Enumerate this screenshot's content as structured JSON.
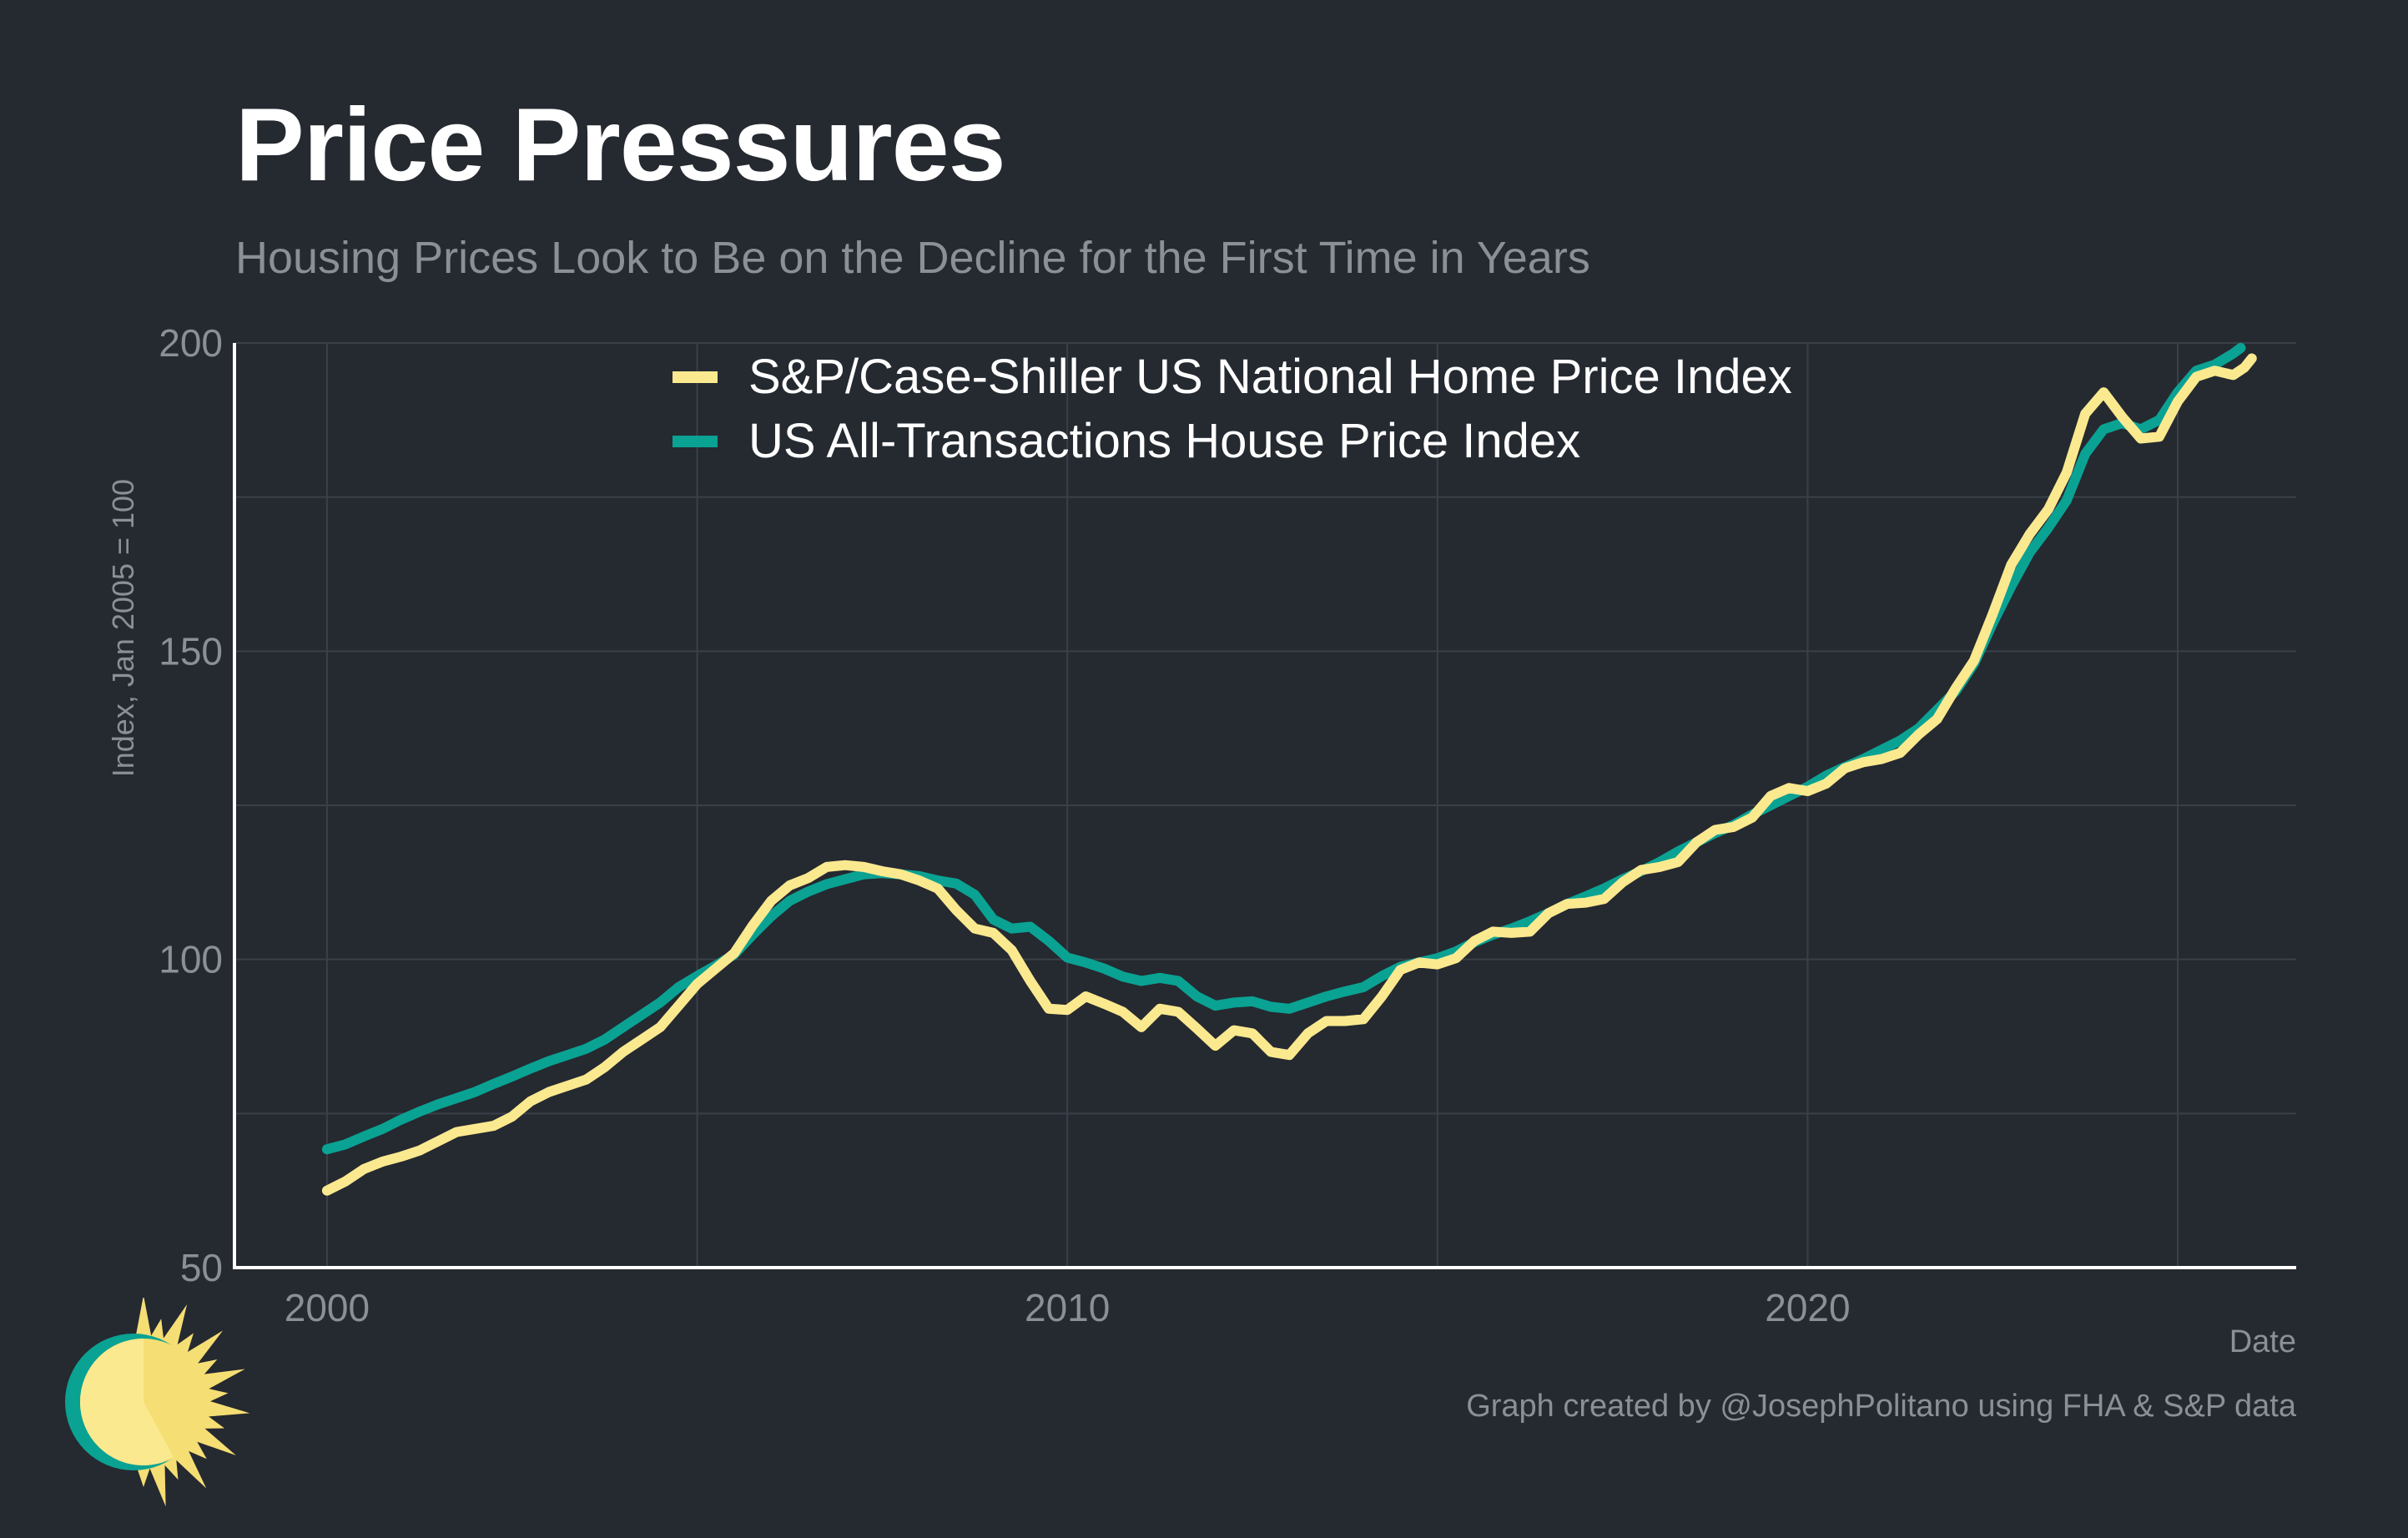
{
  "title": "Price Pressures",
  "subtitle": "Housing Prices Look to Be on the Decline for the First Time in Years",
  "credit": "Graph created by @JosephPolitano using FHA & S&P data",
  "logo": {
    "icon": "sun-clock-icon",
    "colors": [
      "#f5de73",
      "#fbe98f",
      "#0aa293"
    ]
  },
  "colors": {
    "background": "#252930",
    "grid": "#3b4048",
    "axis_text": "#8b8f96",
    "case_shiller": "#fbe98f",
    "all_transactions": "#0aa293"
  },
  "chart_data": {
    "type": "line",
    "title": "Price Pressures",
    "subtitle": "Housing Prices Look to Be on the Decline for the First Time in Years",
    "xlabel": "Date",
    "ylabel": "Index, Jan 2005 = 100",
    "xlim": [
      1998.75,
      2026.6
    ],
    "ylim": [
      50,
      200
    ],
    "x_ticks": [
      2000,
      2010,
      2020
    ],
    "y_ticks": [
      50,
      100,
      150,
      200
    ],
    "grid": true,
    "legend_position": "top-center",
    "series": [
      {
        "name": "S&P/Case-Shiller US National Home Price Index",
        "color": "#fbe98f",
        "points": [
          [
            2000.0,
            62.5
          ],
          [
            2000.25,
            64
          ],
          [
            2000.5,
            66
          ],
          [
            2000.75,
            67.2
          ],
          [
            2001.0,
            68
          ],
          [
            2001.25,
            69
          ],
          [
            2001.5,
            70.5
          ],
          [
            2001.75,
            72
          ],
          [
            2002.0,
            72.5
          ],
          [
            2002.25,
            73
          ],
          [
            2002.5,
            74.5
          ],
          [
            2002.75,
            77
          ],
          [
            2003.0,
            78.5
          ],
          [
            2003.25,
            79.5
          ],
          [
            2003.5,
            80.5
          ],
          [
            2003.75,
            82.5
          ],
          [
            2004.0,
            85
          ],
          [
            2004.25,
            87
          ],
          [
            2004.5,
            89
          ],
          [
            2004.75,
            92.5
          ],
          [
            2005.0,
            96
          ],
          [
            2005.25,
            98.5
          ],
          [
            2005.5,
            101
          ],
          [
            2005.75,
            105.5
          ],
          [
            2006.0,
            109.5
          ],
          [
            2006.25,
            112
          ],
          [
            2006.5,
            113.2
          ],
          [
            2006.75,
            115
          ],
          [
            2007.0,
            115.3
          ],
          [
            2007.25,
            115
          ],
          [
            2007.5,
            114.3
          ],
          [
            2007.75,
            113.8
          ],
          [
            2008.0,
            112.8
          ],
          [
            2008.25,
            111.5
          ],
          [
            2008.5,
            108
          ],
          [
            2008.75,
            105
          ],
          [
            2009.0,
            104.3
          ],
          [
            2009.25,
            101.5
          ],
          [
            2009.5,
            96.5
          ],
          [
            2009.75,
            92
          ],
          [
            2010.0,
            91.8
          ],
          [
            2010.25,
            94
          ],
          [
            2010.5,
            92.8
          ],
          [
            2010.75,
            91.5
          ],
          [
            2011.0,
            89
          ],
          [
            2011.25,
            92
          ],
          [
            2011.5,
            91.5
          ],
          [
            2011.75,
            88.8
          ],
          [
            2012.0,
            86
          ],
          [
            2012.25,
            88.5
          ],
          [
            2012.5,
            88
          ],
          [
            2012.75,
            85
          ],
          [
            2013.0,
            84.5
          ],
          [
            2013.25,
            88
          ],
          [
            2013.5,
            90
          ],
          [
            2013.75,
            90
          ],
          [
            2014.0,
            90.3
          ],
          [
            2014.25,
            94
          ],
          [
            2014.5,
            98.3
          ],
          [
            2014.75,
            99.5
          ],
          [
            2015.0,
            99.2
          ],
          [
            2015.25,
            100.2
          ],
          [
            2015.5,
            103
          ],
          [
            2015.75,
            104.5
          ],
          [
            2016.0,
            104.3
          ],
          [
            2016.25,
            104.5
          ],
          [
            2016.5,
            107.5
          ],
          [
            2016.75,
            109
          ],
          [
            2017.0,
            109.2
          ],
          [
            2017.25,
            109.8
          ],
          [
            2017.5,
            112.5
          ],
          [
            2017.75,
            114.5
          ],
          [
            2018.0,
            115
          ],
          [
            2018.25,
            115.8
          ],
          [
            2018.5,
            119
          ],
          [
            2018.75,
            121
          ],
          [
            2019.0,
            121.5
          ],
          [
            2019.25,
            123
          ],
          [
            2019.5,
            126.5
          ],
          [
            2019.75,
            127.8
          ],
          [
            2020.0,
            127.3
          ],
          [
            2020.25,
            128.5
          ],
          [
            2020.5,
            131
          ],
          [
            2020.75,
            132
          ],
          [
            2021.0,
            132.5
          ],
          [
            2021.25,
            133.5
          ],
          [
            2021.5,
            136.5
          ],
          [
            2021.75,
            139
          ],
          [
            2022.0,
            144
          ],
          [
            2022.25,
            148.5
          ],
          [
            2022.5,
            156
          ],
          [
            2022.75,
            164
          ],
          [
            2023.0,
            169
          ],
          [
            2023.25,
            173
          ],
          [
            2023.5,
            179
          ],
          [
            2023.75,
            188.5
          ],
          [
            2024.0,
            192
          ],
          [
            2024.25,
            188
          ],
          [
            2024.5,
            184.5
          ],
          [
            2024.75,
            184.8
          ],
          [
            2025.0,
            190.5
          ],
          [
            2025.25,
            194.5
          ],
          [
            2025.5,
            195.5
          ],
          [
            2025.75,
            194.8
          ],
          [
            2025.9,
            196
          ],
          [
            2026.0,
            197.5
          ]
        ]
      },
      {
        "name": "US All-Transactions House Price Index",
        "color": "#0aa293",
        "points": [
          [
            2000.0,
            69.2
          ],
          [
            2000.25,
            70
          ],
          [
            2000.5,
            71.3
          ],
          [
            2000.75,
            72.5
          ],
          [
            2001.0,
            74
          ],
          [
            2001.25,
            75.3
          ],
          [
            2001.5,
            76.5
          ],
          [
            2001.75,
            77.5
          ],
          [
            2002.0,
            78.5
          ],
          [
            2002.25,
            79.8
          ],
          [
            2002.5,
            81
          ],
          [
            2002.75,
            82.3
          ],
          [
            2003.0,
            83.5
          ],
          [
            2003.25,
            84.5
          ],
          [
            2003.5,
            85.5
          ],
          [
            2003.75,
            87
          ],
          [
            2004.0,
            89
          ],
          [
            2004.25,
            91
          ],
          [
            2004.5,
            93
          ],
          [
            2004.75,
            95.5
          ],
          [
            2005.0,
            97.3
          ],
          [
            2005.25,
            99
          ],
          [
            2005.5,
            100.8
          ],
          [
            2005.75,
            104
          ],
          [
            2006.0,
            107
          ],
          [
            2006.25,
            109.5
          ],
          [
            2006.5,
            111
          ],
          [
            2006.75,
            112.2
          ],
          [
            2007.0,
            113
          ],
          [
            2007.25,
            113.8
          ],
          [
            2007.5,
            114
          ],
          [
            2007.75,
            113.8
          ],
          [
            2008.0,
            113.5
          ],
          [
            2008.25,
            112.8
          ],
          [
            2008.5,
            112.3
          ],
          [
            2008.75,
            110.5
          ],
          [
            2009.0,
            106.5
          ],
          [
            2009.25,
            105
          ],
          [
            2009.5,
            105.3
          ],
          [
            2009.75,
            103
          ],
          [
            2010.0,
            100.3
          ],
          [
            2010.25,
            99.5
          ],
          [
            2010.5,
            98.5
          ],
          [
            2010.75,
            97.2
          ],
          [
            2011.0,
            96.5
          ],
          [
            2011.25,
            97
          ],
          [
            2011.5,
            96.5
          ],
          [
            2011.75,
            94
          ],
          [
            2012.0,
            92.5
          ],
          [
            2012.25,
            93
          ],
          [
            2012.5,
            93.2
          ],
          [
            2012.75,
            92.3
          ],
          [
            2013.0,
            92
          ],
          [
            2013.25,
            93
          ],
          [
            2013.5,
            94
          ],
          [
            2013.75,
            94.8
          ],
          [
            2014.0,
            95.5
          ],
          [
            2014.25,
            97.3
          ],
          [
            2014.5,
            98.8
          ],
          [
            2014.75,
            99.5
          ],
          [
            2015.0,
            100.2
          ],
          [
            2015.25,
            101.3
          ],
          [
            2015.5,
            102.8
          ],
          [
            2015.75,
            104
          ],
          [
            2016.0,
            105
          ],
          [
            2016.25,
            106.2
          ],
          [
            2016.5,
            107.5
          ],
          [
            2016.75,
            109
          ],
          [
            2017.0,
            110.2
          ],
          [
            2017.25,
            111.5
          ],
          [
            2017.5,
            113
          ],
          [
            2017.75,
            114.3
          ],
          [
            2018.0,
            115.8
          ],
          [
            2018.25,
            117.5
          ],
          [
            2018.5,
            119
          ],
          [
            2018.75,
            120.5
          ],
          [
            2019.0,
            121.8
          ],
          [
            2019.25,
            123.5
          ],
          [
            2019.5,
            125
          ],
          [
            2019.75,
            126.5
          ],
          [
            2020.0,
            128
          ],
          [
            2020.25,
            129.8
          ],
          [
            2020.5,
            131.2
          ],
          [
            2020.75,
            132.5
          ],
          [
            2021.0,
            134
          ],
          [
            2021.25,
            135.5
          ],
          [
            2021.5,
            137.5
          ],
          [
            2021.75,
            140.5
          ],
          [
            2022.0,
            143.5
          ],
          [
            2022.25,
            148
          ],
          [
            2022.5,
            154.5
          ],
          [
            2022.75,
            160.5
          ],
          [
            2023.0,
            166
          ],
          [
            2023.25,
            170
          ],
          [
            2023.5,
            174.5
          ],
          [
            2023.75,
            182
          ],
          [
            2024.0,
            186
          ],
          [
            2024.25,
            187
          ],
          [
            2024.5,
            186
          ],
          [
            2024.75,
            187.5
          ],
          [
            2025.0,
            192
          ],
          [
            2025.25,
            195.5
          ],
          [
            2025.5,
            196.5
          ],
          [
            2025.75,
            198.3
          ],
          [
            2025.85,
            199.2
          ]
        ]
      }
    ]
  }
}
